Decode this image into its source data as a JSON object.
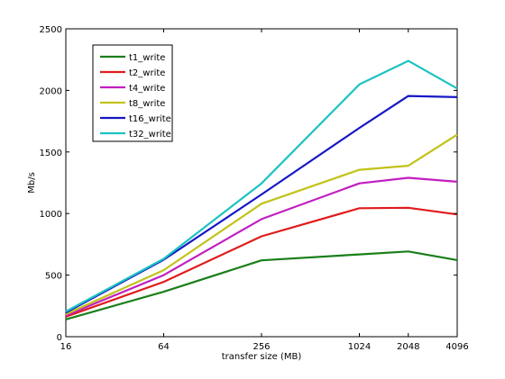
{
  "chart_data": {
    "type": "line",
    "title": "",
    "xlabel": "transfer size (MB)",
    "ylabel": "Mb/s",
    "x_ticks": [
      "16",
      "64",
      "256",
      "1024",
      "2048",
      "4096"
    ],
    "x_scale": "log2",
    "x": [
      16,
      64,
      256,
      1024,
      2048,
      4096
    ],
    "ylim": [
      0,
      2500
    ],
    "y_ticks": [
      0,
      500,
      1000,
      1500,
      2000,
      2500
    ],
    "grid": false,
    "legend_position": "top-left",
    "series": [
      {
        "name": "t1_write",
        "color": "#1a7f1a",
        "values": [
          140,
          365,
          620,
          668,
          692,
          622
        ]
      },
      {
        "name": "t2_write",
        "color": "#e01c1c",
        "values": [
          162,
          445,
          815,
          1043,
          1047,
          993
        ]
      },
      {
        "name": "t4_write",
        "color": "#c11fc1",
        "values": [
          172,
          500,
          955,
          1245,
          1290,
          1258
        ]
      },
      {
        "name": "t8_write",
        "color": "#c2c21a",
        "values": [
          182,
          540,
          1080,
          1355,
          1388,
          1640
        ]
      },
      {
        "name": "t16_write",
        "color": "#1717c4",
        "values": [
          195,
          625,
          1155,
          1695,
          1955,
          1945
        ]
      },
      {
        "name": "t32_write",
        "color": "#1ec2c2",
        "values": [
          205,
          632,
          1245,
          2048,
          2240,
          2015
        ]
      }
    ]
  }
}
